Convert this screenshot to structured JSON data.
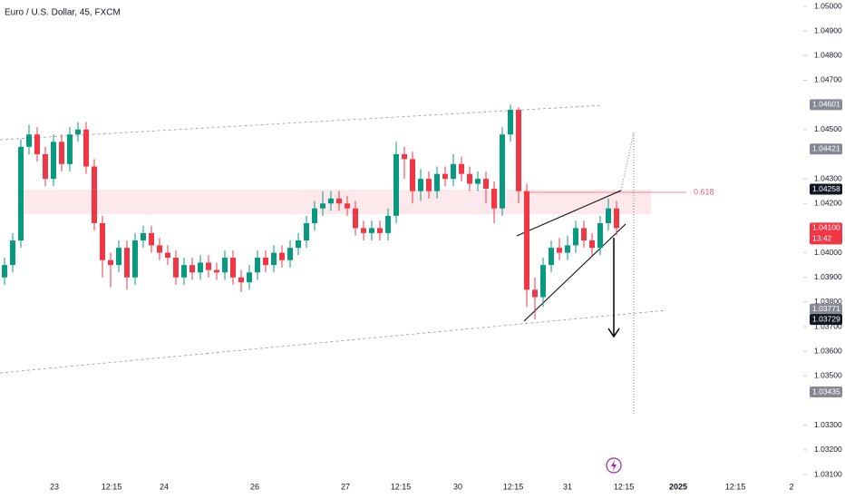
{
  "chart_data": {
    "type": "candlestick",
    "title": "Euro / U.S. Dollar, 45, FXCM",
    "up_color": "#089981",
    "down_color": "#f23645",
    "ylim": [
      1.031,
      1.05
    ],
    "yticks": [
      {
        "value": 1.05,
        "label": "1.05000"
      },
      {
        "value": 1.049,
        "label": "1.04900"
      },
      {
        "value": 1.048,
        "label": "1.04800"
      },
      {
        "value": 1.047,
        "label": "1.04700"
      },
      {
        "value": 1.045,
        "label": "1.04500"
      },
      {
        "value": 1.043,
        "label": "1.04300"
      },
      {
        "value": 1.042,
        "label": "1.04200"
      },
      {
        "value": 1.04,
        "label": "1.04000"
      },
      {
        "value": 1.039,
        "label": "1.03900"
      },
      {
        "value": 1.038,
        "label": "1.03800"
      },
      {
        "value": 1.037,
        "label": "1.03700"
      },
      {
        "value": 1.036,
        "label": "1.03600"
      },
      {
        "value": 1.035,
        "label": "1.03500"
      },
      {
        "value": 1.033,
        "label": "1.03300"
      },
      {
        "value": 1.032,
        "label": "1.03200"
      },
      {
        "value": 1.031,
        "label": "1.03100"
      }
    ],
    "x_labels": [
      "23",
      "12:15",
      "24",
      "26",
      "27",
      "12:15",
      "30",
      "12:15",
      "31",
      "12:15",
      "2025",
      "12:15",
      "2"
    ],
    "open": [
      1.039,
      1.0395,
      1.0405,
      1.0443,
      1.0448,
      1.044,
      1.043,
      1.0445,
      1.0436,
      1.0448,
      1.045,
      1.0435,
      1.0412,
      1.0397,
      1.0395,
      1.0402,
      1.039,
      1.0405,
      1.0408,
      1.0403,
      1.04,
      1.0398,
      1.039,
      1.0395,
      1.0392,
      1.0396,
      1.0393,
      1.0392,
      1.0398,
      1.039,
      1.0388,
      1.0392,
      1.0398,
      1.0395,
      1.04,
      1.0397,
      1.0402,
      1.0405,
      1.0412,
      1.0418,
      1.042,
      1.0422,
      1.042,
      1.0418,
      1.041,
      1.0408,
      1.041,
      1.0408,
      1.0415,
      1.044,
      1.0438,
      1.0425,
      1.043,
      1.0425,
      1.0432,
      1.043,
      1.0436,
      1.0432,
      1.0428,
      1.043,
      1.0426,
      1.0418,
      1.0448,
      1.0458,
      1.0425,
      1.0385,
      1.0382,
      1.0395,
      1.0402,
      1.04,
      1.0403,
      1.041,
      1.0405,
      1.0402,
      1.0412,
      1.0418
    ],
    "high": [
      1.0398,
      1.0408,
      1.0446,
      1.0452,
      1.0451,
      1.0443,
      1.0448,
      1.0448,
      1.0451,
      1.0453,
      1.0453,
      1.0438,
      1.0415,
      1.04,
      1.0405,
      1.0405,
      1.0408,
      1.0411,
      1.0411,
      1.0406,
      1.0403,
      1.0401,
      1.0398,
      1.0398,
      1.0399,
      1.0399,
      1.0396,
      1.0401,
      1.0401,
      1.0393,
      1.0395,
      1.0401,
      1.0401,
      1.0403,
      1.0403,
      1.0405,
      1.0408,
      1.0415,
      1.0421,
      1.0425,
      1.0425,
      1.0425,
      1.0423,
      1.0421,
      1.0413,
      1.0413,
      1.0413,
      1.0418,
      1.0445,
      1.0443,
      1.0441,
      1.0434,
      1.0433,
      1.0435,
      1.0435,
      1.044,
      1.0439,
      1.0435,
      1.0433,
      1.0433,
      1.0429,
      1.0451,
      1.04601,
      1.0459,
      1.0428,
      1.039,
      1.0398,
      1.0405,
      1.0406,
      1.0407,
      1.0413,
      1.0413,
      1.0408,
      1.0415,
      1.0422,
      1.0421
    ],
    "low": [
      1.0387,
      1.0392,
      1.0402,
      1.044,
      1.0437,
      1.0427,
      1.0427,
      1.0433,
      1.0433,
      1.0445,
      1.0432,
      1.0409,
      1.039,
      1.0386,
      1.0392,
      1.0385,
      1.0387,
      1.0402,
      1.04,
      1.0397,
      1.0395,
      1.0387,
      1.0387,
      1.0389,
      1.0389,
      1.039,
      1.0389,
      1.0389,
      1.0387,
      1.0384,
      1.0385,
      1.0389,
      1.0392,
      1.0392,
      1.0394,
      1.0394,
      1.0399,
      1.0402,
      1.0409,
      1.0415,
      1.0417,
      1.0417,
      1.0415,
      1.0407,
      1.0405,
      1.0405,
      1.0405,
      1.0405,
      1.0412,
      1.043,
      1.042,
      1.0421,
      1.0422,
      1.0422,
      1.0427,
      1.0427,
      1.0429,
      1.0425,
      1.0425,
      1.042,
      1.0412,
      1.0415,
      1.0445,
      1.042,
      1.0378,
      1.0373,
      1.0378,
      1.0392,
      1.0397,
      1.0397,
      1.04,
      1.0402,
      1.0399,
      1.0399,
      1.0409,
      1.0407
    ],
    "close": [
      1.0395,
      1.0405,
      1.0443,
      1.0448,
      1.044,
      1.043,
      1.0445,
      1.0436,
      1.0448,
      1.045,
      1.0435,
      1.0412,
      1.0397,
      1.0395,
      1.0402,
      1.039,
      1.0405,
      1.0408,
      1.0403,
      1.04,
      1.0398,
      1.039,
      1.0395,
      1.0392,
      1.0396,
      1.0393,
      1.0392,
      1.0398,
      1.039,
      1.0388,
      1.0392,
      1.0398,
      1.0395,
      1.04,
      1.0397,
      1.0402,
      1.0405,
      1.0412,
      1.0418,
      1.042,
      1.0422,
      1.042,
      1.0418,
      1.041,
      1.0408,
      1.041,
      1.0408,
      1.0415,
      1.044,
      1.0438,
      1.0425,
      1.043,
      1.0425,
      1.0432,
      1.043,
      1.0436,
      1.0432,
      1.0428,
      1.043,
      1.0426,
      1.0418,
      1.0448,
      1.0458,
      1.0425,
      1.0385,
      1.0382,
      1.0395,
      1.0402,
      1.04,
      1.0403,
      1.041,
      1.0405,
      1.0402,
      1.0412,
      1.0418,
      1.041
    ],
    "price_labels": [
      {
        "value": 1.04601,
        "label": "1.04601",
        "color": "#868993"
      },
      {
        "value": 1.04421,
        "label": "1.04421",
        "color": "#868993"
      },
      {
        "value": 1.04258,
        "label": "1.04258",
        "color": "#131722"
      },
      {
        "value": 1.041,
        "label": "1.04100",
        "sub": "13:42",
        "color": "#f23645"
      },
      {
        "value": 1.03771,
        "label": "1.03771",
        "color": "#868993"
      },
      {
        "value": 1.03729,
        "label": "1.03729",
        "color": "#131722"
      },
      {
        "value": 1.03435,
        "label": "1.03435",
        "color": "#868993"
      }
    ],
    "fib_label": "0.618"
  }
}
